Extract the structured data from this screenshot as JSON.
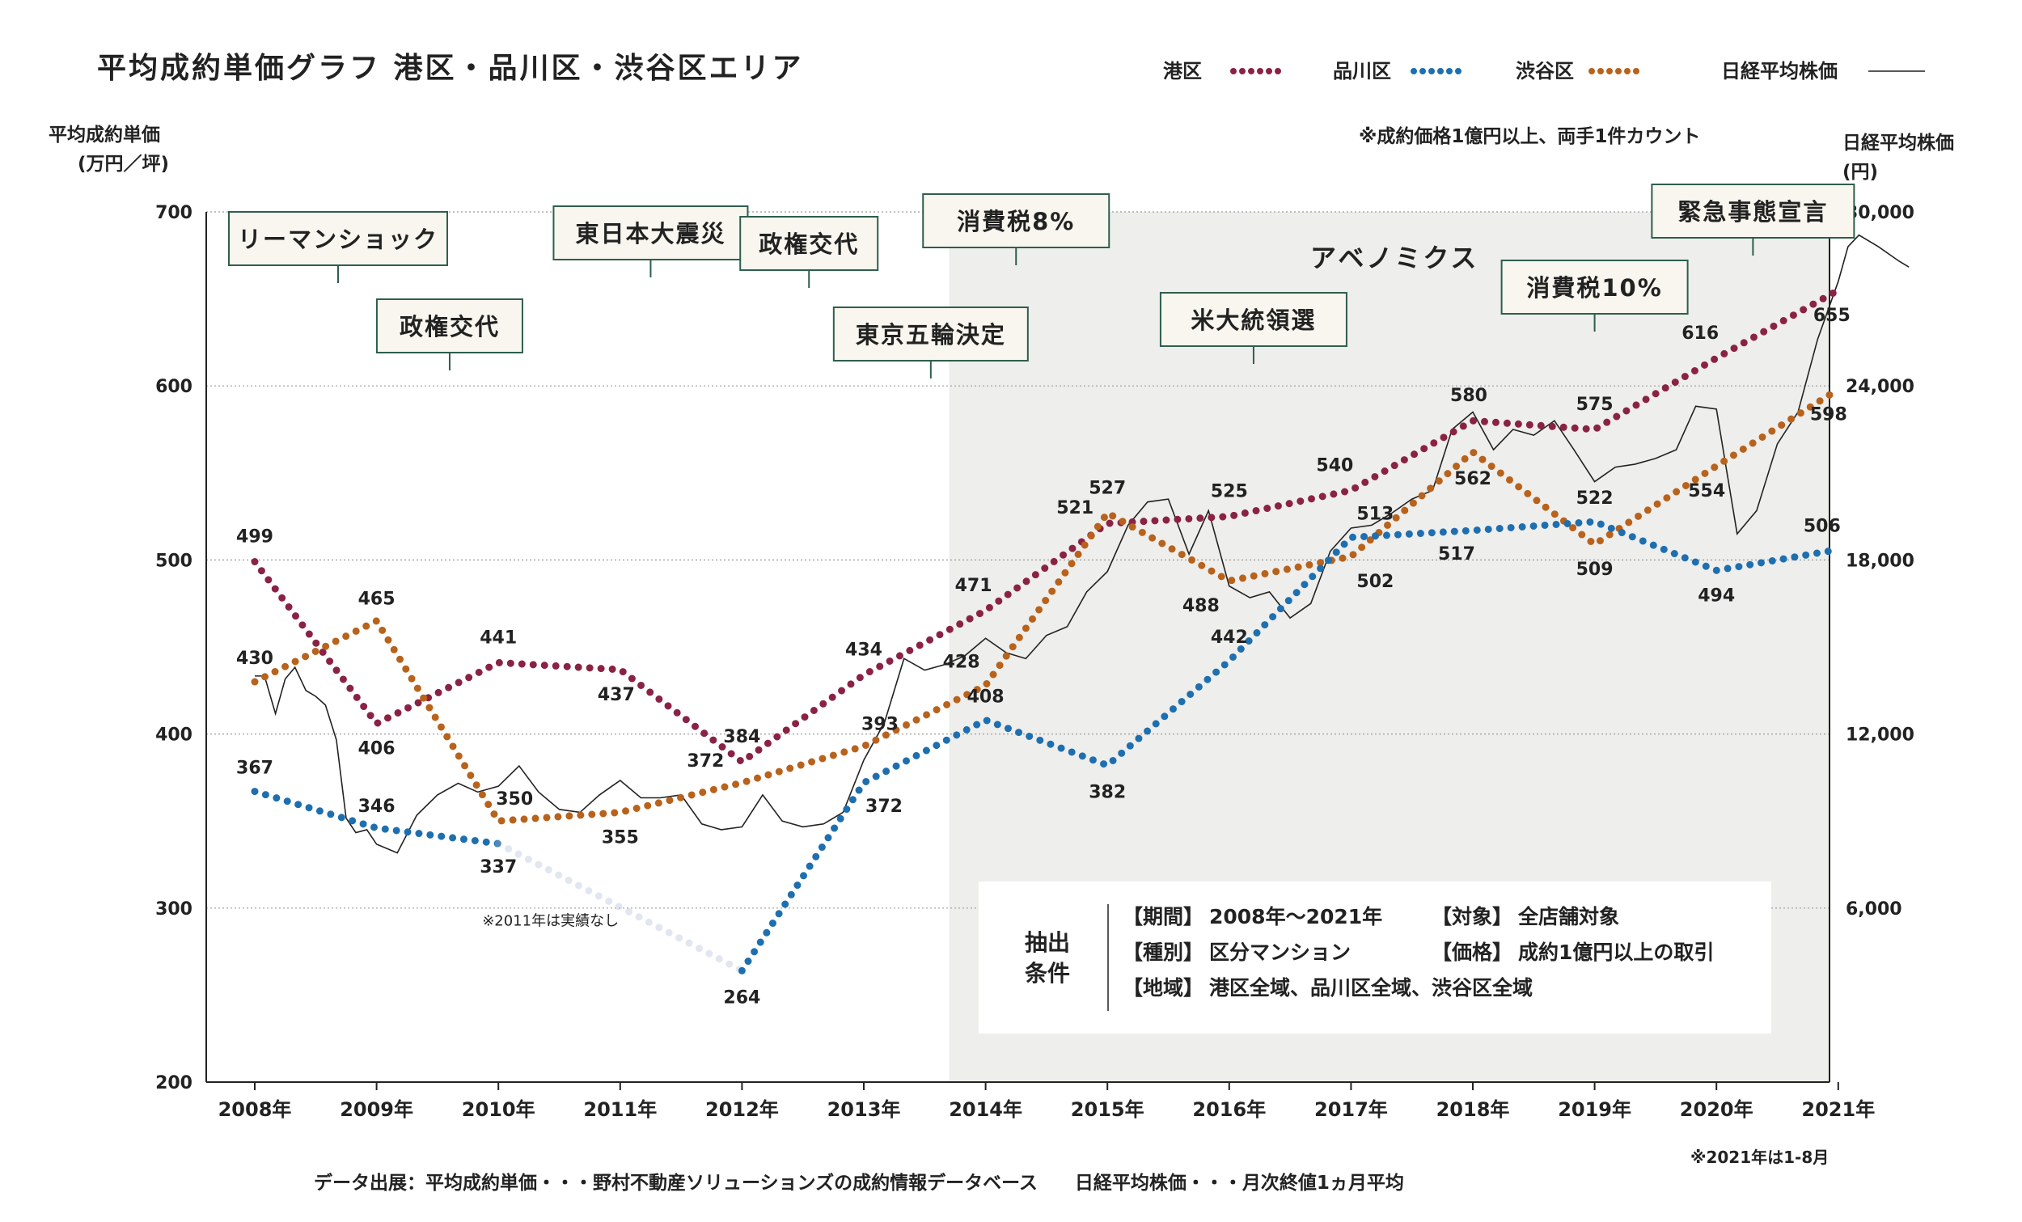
{
  "chart_data": {
    "type": "line",
    "title": "平均成約単価グラフ 港区・品川区・渋谷区エリア",
    "ylabel_left": [
      "平均成約単価",
      "(万円／坪)"
    ],
    "ylabel_right": [
      "日経平均株価",
      "(円)"
    ],
    "note_top": "※成約価格1億円以上、両手1件カウント",
    "x_ticks": [
      "2008年",
      "2009年",
      "2010年",
      "2011年",
      "2012年",
      "2013年",
      "2014年",
      "2015年",
      "2016年",
      "2017年",
      "2018年",
      "2019年",
      "2020年",
      "2021年"
    ],
    "x_range": [
      2007.6,
      2021.0
    ],
    "y_left_ticks": [
      "700",
      "600",
      "500",
      "400",
      "300",
      "200"
    ],
    "y_left_range": [
      200,
      700
    ],
    "y_right_ticks": [
      "30,000",
      "24,000",
      "18,000",
      "12,000",
      "6,000"
    ],
    "y_right_range": [
      0,
      30000
    ],
    "grid": true,
    "legend_position": "top-right",
    "series": [
      {
        "name": "港区",
        "color": "#8a2343",
        "x": [
          2008,
          2009,
          2010,
          2011,
          2012,
          2013,
          2014,
          2015,
          2016,
          2017,
          2018,
          2019,
          2020,
          2021
        ],
        "values": [
          499,
          406,
          441,
          437,
          384,
          434,
          471,
          521,
          525,
          540,
          580,
          575,
          616,
          655
        ],
        "labels": [
          "499",
          "406",
          "441",
          "437",
          "384",
          "434",
          "471",
          "521",
          "525",
          "540",
          "580",
          "575",
          "616",
          "655"
        ]
      },
      {
        "name": "品川区",
        "color": "#1e6fb0",
        "x": [
          2008,
          2009,
          2010,
          2012,
          2013,
          2014,
          2015,
          2016,
          2017,
          2018,
          2019,
          2020,
          2021
        ],
        "values": [
          367,
          346,
          337,
          264,
          372,
          408,
          382,
          442,
          513,
          517,
          522,
          494,
          506
        ],
        "labels": [
          "367",
          "346",
          "337",
          "264",
          "372",
          "408",
          "382",
          "442",
          "513",
          "517",
          "522",
          "494",
          "506"
        ],
        "gap_note": "※2011年は実績なし"
      },
      {
        "name": "渋谷区",
        "color": "#b8621b",
        "x": [
          2008,
          2009,
          2010,
          2011,
          2012,
          2013,
          2014,
          2015,
          2016,
          2017,
          2018,
          2019,
          2020,
          2021
        ],
        "values": [
          430,
          465,
          350,
          355,
          372,
          393,
          428,
          527,
          488,
          502,
          562,
          509,
          554,
          598
        ],
        "labels": [
          "430",
          "465",
          "350",
          "355",
          "372",
          "393",
          "428",
          "527",
          "488",
          "502",
          "562",
          "509",
          "554",
          "598"
        ]
      },
      {
        "name": "日経平均株価",
        "color": "#222222",
        "axis": "right",
        "x": [
          2008.0,
          2008.08,
          2008.17,
          2008.25,
          2008.33,
          2008.42,
          2008.5,
          2008.58,
          2008.67,
          2008.75,
          2008.83,
          2008.92,
          2009.0,
          2009.17,
          2009.33,
          2009.5,
          2009.67,
          2009.83,
          2010.0,
          2010.17,
          2010.33,
          2010.5,
          2010.67,
          2010.83,
          2011.0,
          2011.17,
          2011.33,
          2011.5,
          2011.67,
          2011.83,
          2012.0,
          2012.17,
          2012.33,
          2012.5,
          2012.67,
          2012.83,
          2013.0,
          2013.17,
          2013.33,
          2013.5,
          2013.67,
          2013.83,
          2014.0,
          2014.17,
          2014.33,
          2014.5,
          2014.67,
          2014.83,
          2015.0,
          2015.17,
          2015.33,
          2015.5,
          2015.67,
          2015.83,
          2016.0,
          2016.17,
          2016.33,
          2016.5,
          2016.67,
          2016.83,
          2017.0,
          2017.17,
          2017.33,
          2017.5,
          2017.67,
          2017.83,
          2018.0,
          2018.17,
          2018.33,
          2018.5,
          2018.67,
          2018.83,
          2019.0,
          2019.17,
          2019.33,
          2019.5,
          2019.67,
          2019.83,
          2020.0,
          2020.17,
          2020.33,
          2020.5,
          2020.67,
          2020.83,
          2021.0,
          2021.08,
          2021.17,
          2021.33,
          2021.5,
          2021.58
        ],
        "values": [
          14000,
          14000,
          12700,
          13900,
          14300,
          13500,
          13300,
          13000,
          11800,
          9100,
          8600,
          8700,
          8200,
          7900,
          9200,
          9900,
          10300,
          10000,
          10200,
          10900,
          10000,
          9400,
          9300,
          9900,
          10400,
          9800,
          9800,
          9900,
          8900,
          8700,
          8800,
          9900,
          9000,
          8800,
          8900,
          9300,
          11100,
          12400,
          14600,
          14200,
          14400,
          14700,
          15300,
          14800,
          14600,
          15400,
          15700,
          16900,
          17600,
          19200,
          20000,
          20100,
          18200,
          19700,
          17100,
          16700,
          16900,
          16000,
          16500,
          18300,
          19100,
          19200,
          19600,
          20100,
          20400,
          22500,
          23100,
          21800,
          22500,
          22300,
          22800,
          21800,
          20700,
          21200,
          21300,
          21500,
          21800,
          23300,
          23200,
          18900,
          19700,
          22000,
          23100,
          25600,
          27600,
          28800,
          29200,
          28800,
          28300,
          28100
        ]
      }
    ],
    "shaded_period": {
      "label": "アベノミクス",
      "x_start": 2013.7,
      "x_end": 2021.9
    },
    "events": [
      {
        "label": "リーマンショック",
        "x": 2008.7
      },
      {
        "label": "政権交代",
        "x": 2009.6
      },
      {
        "label": "東日本大震災",
        "x": 2011.25
      },
      {
        "label": "政権交代",
        "x": 2012.55
      },
      {
        "label": "東京五輪決定",
        "x": 2013.55
      },
      {
        "label": "消費税8%",
        "x": 2014.25
      },
      {
        "label": "米大統領選",
        "x": 2016.2
      },
      {
        "label": "消費税10%",
        "x": 2019.0
      },
      {
        "label": "緊急事態宣言",
        "x": 2020.3
      }
    ],
    "footnote_2021": "※2021年は1-8月",
    "source_note": "データ出展：平均成約単価・・・野村不動産ソリューションズの成約情報データベース　　日経平均株価・・・月次終値1ヵ月平均"
  },
  "criteria": {
    "heading": [
      "抽出",
      "条件"
    ],
    "rows": [
      {
        "k1": "【期間】",
        "v1": "2008年～2021年",
        "k2": "【対象】",
        "v2": "全店舗対象"
      },
      {
        "k1": "【種別】",
        "v1": "区分マンション",
        "k2": "【価格】",
        "v2": "成約1億円以上の取引"
      },
      {
        "k1": "【地域】",
        "v1": "港区全域、品川区全域、渋谷区全域",
        "k2": "",
        "v2": ""
      }
    ]
  },
  "colors": {
    "shade": "#eeeeec",
    "event_border": "#2e5e4e",
    "event_text": "#1f4e40",
    "event_bg": "#f8f6ee",
    "abenomics": "#c9a24d",
    "grid": "#9a9a9a"
  }
}
